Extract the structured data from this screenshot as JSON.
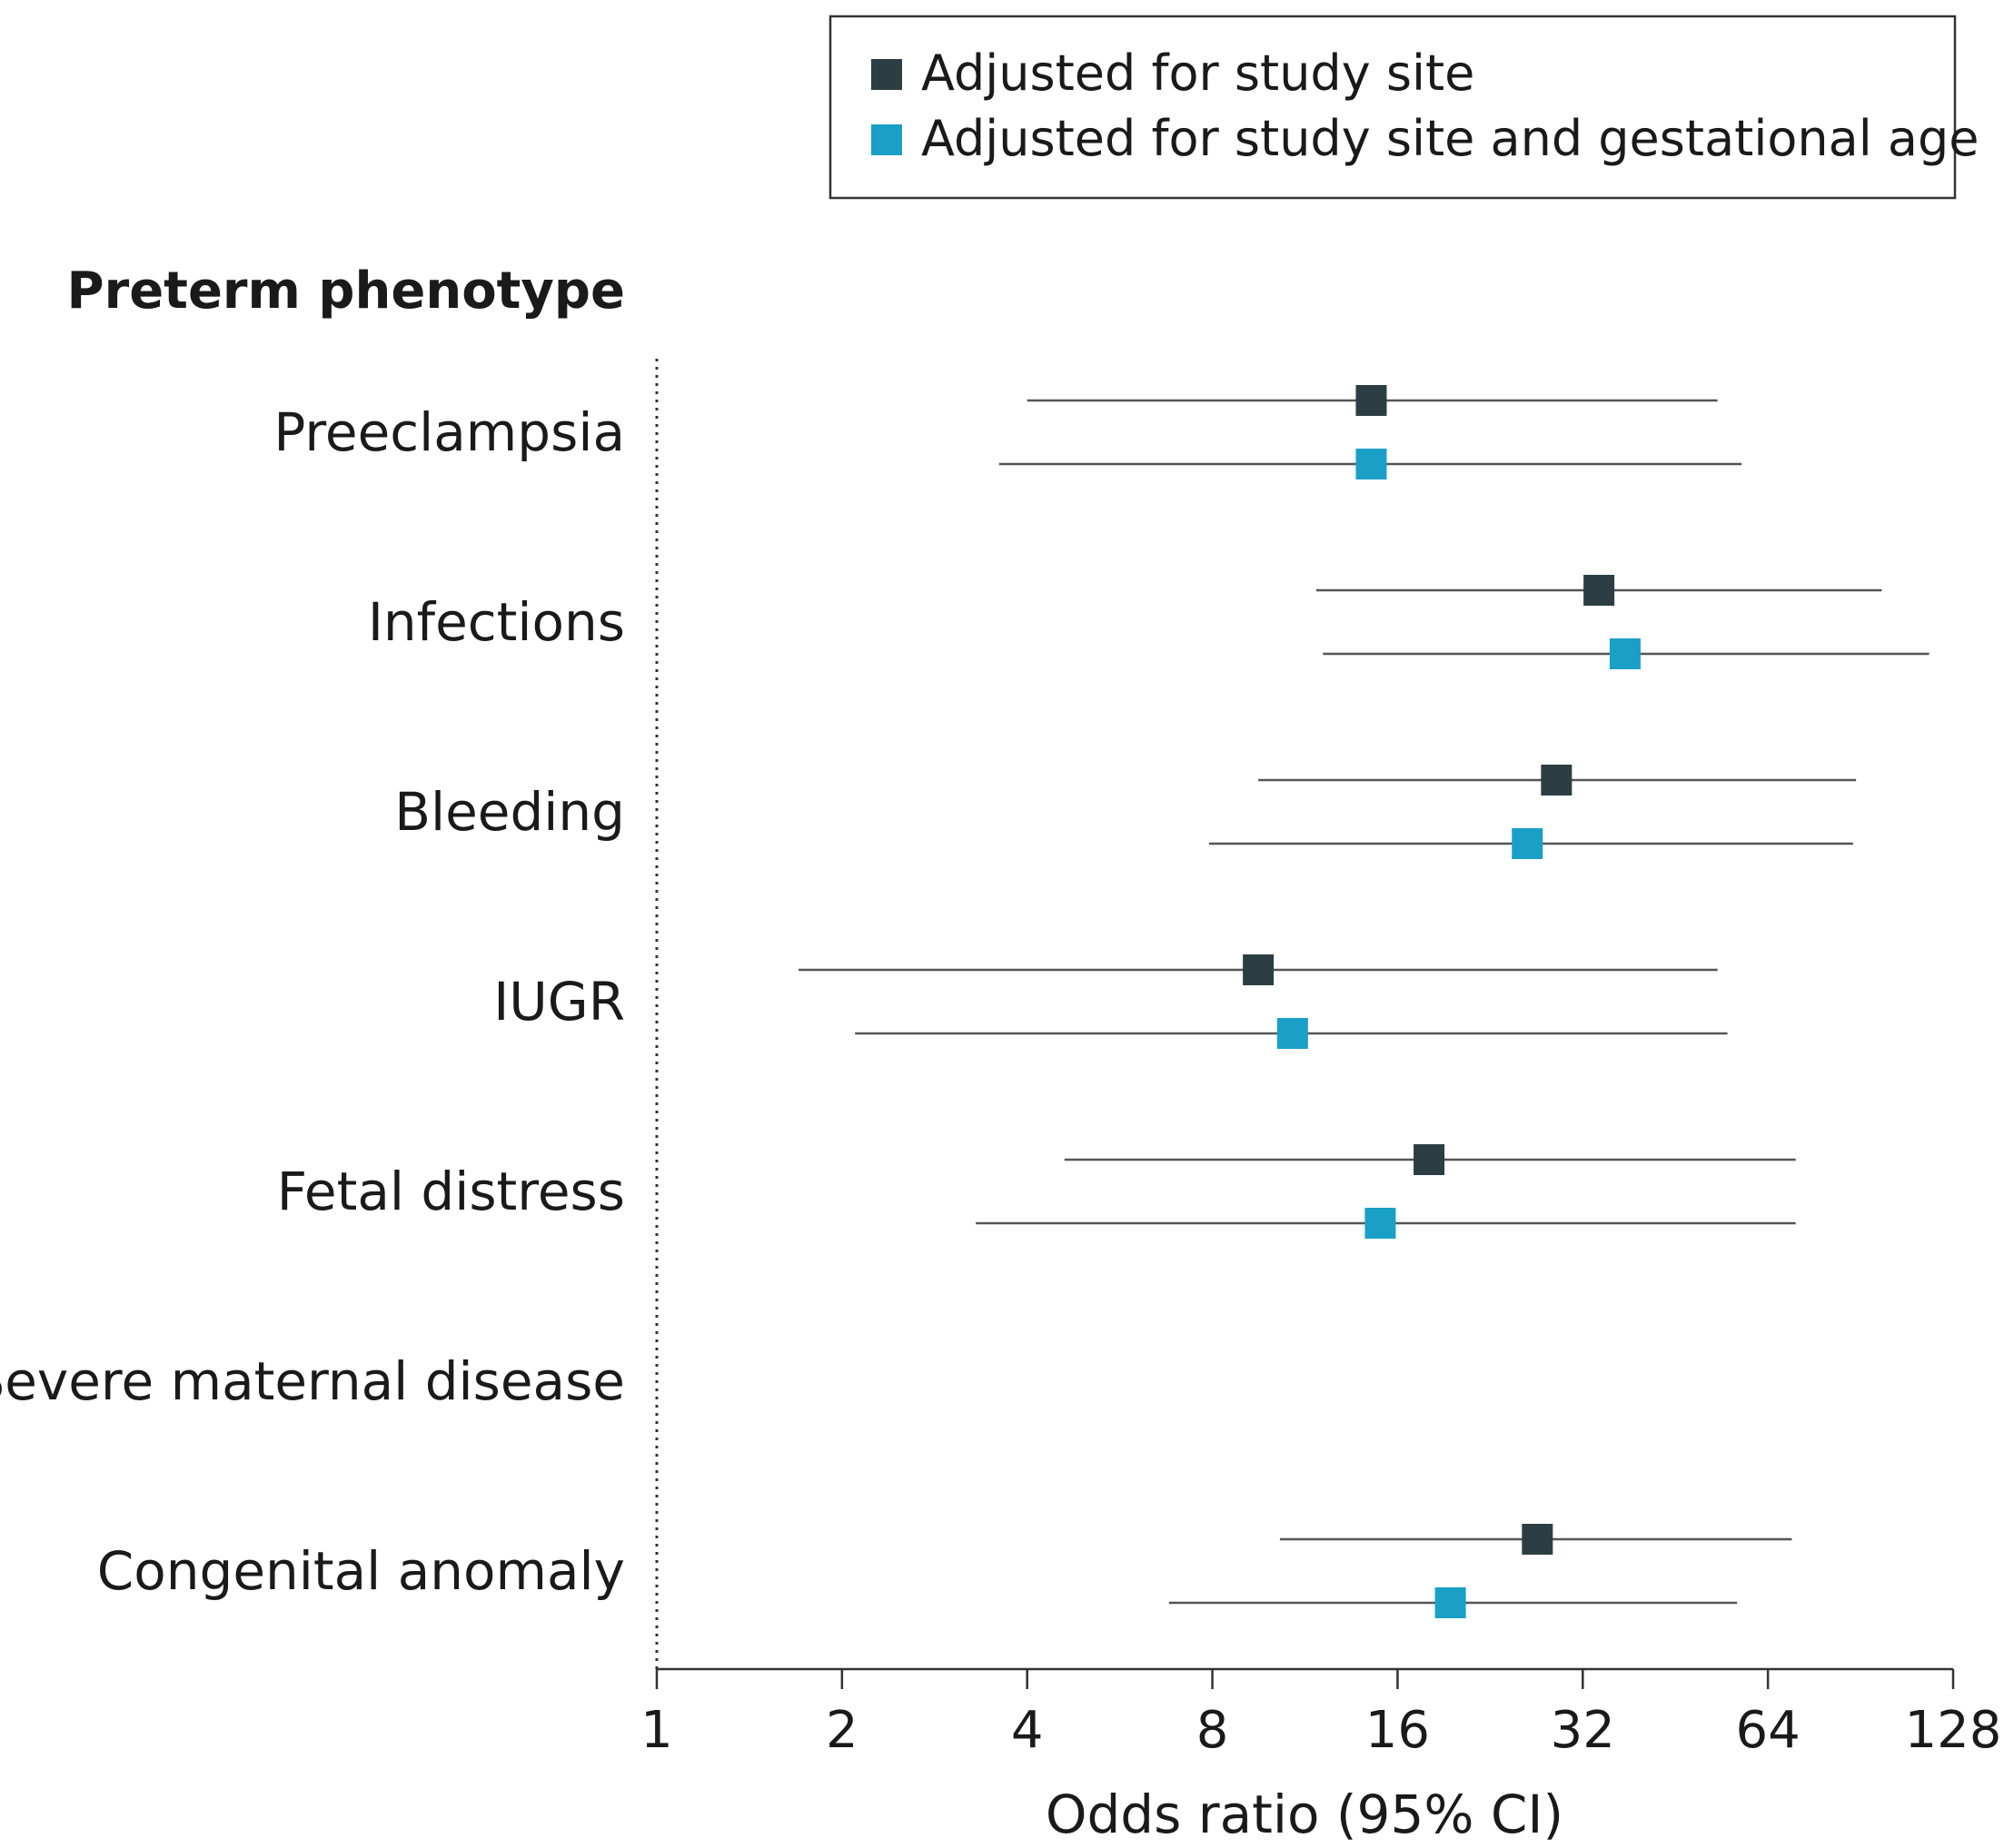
{
  "chart_data": {
    "type": "forest",
    "title": "Preterm phenotype",
    "xlabel": "Odds ratio (95% CI)",
    "x_scale": "log2",
    "xlim": [
      1,
      128
    ],
    "ticks": [
      {
        "value": 1,
        "label": "1"
      },
      {
        "value": 2,
        "label": "2"
      },
      {
        "value": 4,
        "label": "4"
      },
      {
        "value": 8,
        "label": "8"
      },
      {
        "value": 16,
        "label": "16"
      },
      {
        "value": 32,
        "label": "32"
      },
      {
        "value": 64,
        "label": "64"
      },
      {
        "value": 128,
        "label": "128"
      }
    ],
    "legend": {
      "placement": "top-right",
      "entries": [
        {
          "name": "Adjusted for study site",
          "color": "#2c3e44"
        },
        {
          "name": "Adjusted for study site and gestational age",
          "color": "#1aa0c6"
        }
      ]
    },
    "categories": [
      "Preeclampsia",
      "Infections",
      "Bleeding",
      "IUGR",
      "Fetal distress",
      "Severe maternal disease",
      "Congenital anomaly"
    ],
    "series": [
      {
        "name": "Adjusted for study site",
        "color": "#2c3e44",
        "points": [
          {
            "category": "Preeclampsia",
            "or": 14.5,
            "lo": 4.0,
            "hi": 53
          },
          {
            "category": "Infections",
            "or": 34,
            "lo": 11.8,
            "hi": 98
          },
          {
            "category": "Bleeding",
            "or": 29,
            "lo": 9.5,
            "hi": 89
          },
          {
            "category": "IUGR",
            "or": 9.5,
            "lo": 1.7,
            "hi": 53
          },
          {
            "category": "Fetal distress",
            "or": 18,
            "lo": 4.6,
            "hi": 71
          },
          {
            "category": "Severe maternal disease",
            "or": null,
            "lo": null,
            "hi": null
          },
          {
            "category": "Congenital anomaly",
            "or": 27,
            "lo": 10.3,
            "hi": 70
          }
        ]
      },
      {
        "name": "Adjusted for study site and gestational age",
        "color": "#1aa0c6",
        "points": [
          {
            "category": "Preeclampsia",
            "or": 14.5,
            "lo": 3.6,
            "hi": 58
          },
          {
            "category": "Infections",
            "or": 37.5,
            "lo": 12.1,
            "hi": 117
          },
          {
            "category": "Bleeding",
            "or": 26,
            "lo": 7.9,
            "hi": 88
          },
          {
            "category": "IUGR",
            "or": 10.8,
            "lo": 2.1,
            "hi": 55
          },
          {
            "category": "Fetal distress",
            "or": 15,
            "lo": 3.3,
            "hi": 71
          },
          {
            "category": "Severe maternal disease",
            "or": null,
            "lo": null,
            "hi": null
          },
          {
            "category": "Congenital anomaly",
            "or": 19.5,
            "lo": 6.8,
            "hi": 57
          }
        ]
      }
    ]
  }
}
